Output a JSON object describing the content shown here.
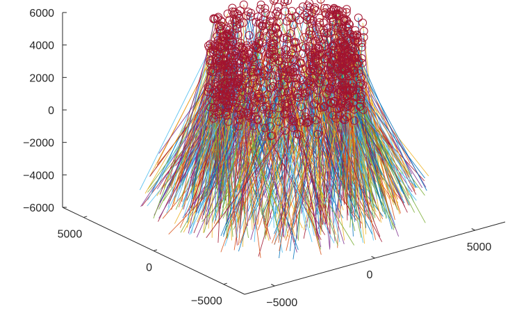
{
  "chart_data": {
    "type": "line3d",
    "title": "",
    "xlabel": "",
    "ylabel": "",
    "zlabel": "",
    "grid": false,
    "legend": "none",
    "axes": {
      "x": {
        "range": [
          -6500,
          6500
        ],
        "ticks": [
          -5000,
          0,
          5000
        ],
        "tick_labels": [
          "−5000",
          "0",
          "5000"
        ]
      },
      "y": {
        "range": [
          -6500,
          6500
        ],
        "ticks": [
          -5000,
          0,
          5000
        ],
        "tick_labels": [
          "−5000",
          "0",
          "5000"
        ]
      },
      "z": {
        "range": [
          -6000,
          6000
        ],
        "ticks": [
          -6000,
          -4000,
          -2000,
          0,
          2000,
          4000,
          6000
        ],
        "tick_labels": [
          "−6000",
          "−4000",
          "−2000",
          "0",
          "2000",
          "4000",
          "6000"
        ]
      }
    },
    "series_colors": [
      "#0072BD",
      "#D95319",
      "#EDB120",
      "#7E2F8E",
      "#77AC30",
      "#4DBEEE",
      "#A2142F"
    ],
    "trajectories": {
      "count": 900,
      "start_radius_range": [
        2500,
        3500
      ],
      "start_z_range": [
        0,
        5500
      ],
      "end_z": -6000,
      "end_radius_range": [
        2500,
        6500
      ],
      "start_marker": "circle",
      "marker_color": "#A2142F"
    }
  }
}
